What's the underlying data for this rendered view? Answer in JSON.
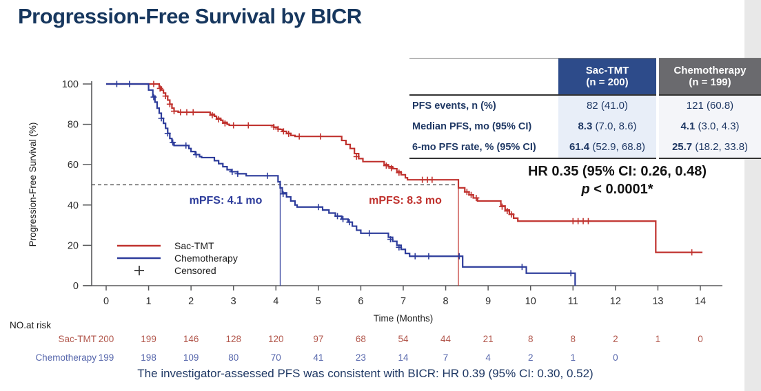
{
  "title": "Progression-Free Survival by BICR",
  "summary_table": {
    "columns": [
      {
        "name": "Sac-TMT",
        "sub": "(n = 200)"
      },
      {
        "name": "Chemotherapy",
        "sub": "(n = 199)"
      }
    ],
    "rows": [
      {
        "label": "PFS events, n (%)",
        "sac_strong": "",
        "sac_rest": "82 (41.0)",
        "chemo_strong": "",
        "chemo_rest": "121 (60.8)"
      },
      {
        "label": "Median PFS, mo (95% CI)",
        "sac_strong": "8.3",
        "sac_rest": "(7.0, 8.6)",
        "chemo_strong": "4.1",
        "chemo_rest": "(3.0, 4.3)"
      },
      {
        "label": "6-mo PFS rate, % (95% CI)",
        "sac_strong": "61.4",
        "sac_rest": "(52.9, 68.8)",
        "chemo_strong": "25.7",
        "chemo_rest": "(18.2, 33.8)"
      }
    ]
  },
  "hr_annotation": {
    "line1": "HR 0.35 (95% CI: 0.26, 0.48)",
    "p_label": "p",
    "p_rest": " < 0.0001*"
  },
  "footnote": "The investigator-assessed PFS was consistent with BICR: HR 0.39 (95% CI: 0.30, 0.52)",
  "chart_data": {
    "type": "line",
    "subtype": "kaplan-meier-step",
    "xlabel": "Time (Months)",
    "ylabel": "Progression-Free Survival (%)",
    "xlim": [
      0,
      14
    ],
    "ylim": [
      0,
      100
    ],
    "xticks": [
      0,
      1,
      2,
      3,
      4,
      5,
      6,
      7,
      8,
      9,
      10,
      11,
      12,
      13,
      14
    ],
    "yticks": [
      0,
      20,
      40,
      60,
      80,
      100
    ],
    "grid": false,
    "legend_position": "lower-left",
    "reference": {
      "dashed_y": 50,
      "sac_median_month": 8.3,
      "chemo_median_month": 4.1
    },
    "series": [
      {
        "name": "Sac-TMT",
        "color": "#C0322E",
        "median_label": "mPFS: 8.3 mo",
        "steps": [
          [
            0,
            100
          ],
          [
            1.2,
            100
          ],
          [
            1.25,
            98.5
          ],
          [
            1.3,
            97
          ],
          [
            1.35,
            95.5
          ],
          [
            1.4,
            94
          ],
          [
            1.45,
            92
          ],
          [
            1.5,
            90
          ],
          [
            1.55,
            88
          ],
          [
            1.6,
            86.5
          ],
          [
            1.7,
            86
          ],
          [
            2.45,
            85
          ],
          [
            2.55,
            84
          ],
          [
            2.6,
            83
          ],
          [
            2.7,
            82
          ],
          [
            2.75,
            81
          ],
          [
            2.85,
            80
          ],
          [
            2.9,
            79.5
          ],
          [
            3.95,
            78.5
          ],
          [
            4.05,
            77.5
          ],
          [
            4.15,
            76.5
          ],
          [
            4.25,
            75.5
          ],
          [
            4.35,
            74.5
          ],
          [
            4.45,
            74
          ],
          [
            5.55,
            72
          ],
          [
            5.65,
            70
          ],
          [
            5.75,
            68
          ],
          [
            5.85,
            65.5
          ],
          [
            5.95,
            63
          ],
          [
            6.05,
            61.5
          ],
          [
            6.55,
            60
          ],
          [
            6.65,
            59
          ],
          [
            6.75,
            58
          ],
          [
            6.85,
            56.5
          ],
          [
            6.95,
            55
          ],
          [
            7.05,
            53.5
          ],
          [
            7.1,
            52.5
          ],
          [
            8.3,
            48.5
          ],
          [
            8.45,
            46.5
          ],
          [
            8.55,
            45
          ],
          [
            8.65,
            43.5
          ],
          [
            8.75,
            42
          ],
          [
            9.3,
            39.5
          ],
          [
            9.4,
            37.5
          ],
          [
            9.5,
            35.5
          ],
          [
            9.6,
            33.5
          ],
          [
            9.7,
            32
          ],
          [
            12.95,
            16.5
          ],
          [
            14.05,
            16.5
          ]
        ],
        "censors": [
          [
            1.12,
            100
          ],
          [
            1.27,
            97.8
          ],
          [
            1.4,
            94
          ],
          [
            1.5,
            90
          ],
          [
            1.6,
            86.5
          ],
          [
            1.75,
            86
          ],
          [
            1.9,
            86
          ],
          [
            2.05,
            86
          ],
          [
            2.5,
            84.5
          ],
          [
            2.65,
            82.5
          ],
          [
            2.8,
            80.5
          ],
          [
            3.0,
            79.5
          ],
          [
            3.35,
            79.5
          ],
          [
            3.95,
            78.7
          ],
          [
            4.05,
            77.7
          ],
          [
            4.18,
            76.5
          ],
          [
            4.3,
            75.3
          ],
          [
            4.55,
            74
          ],
          [
            5.05,
            74
          ],
          [
            5.9,
            64
          ],
          [
            6.6,
            59.5
          ],
          [
            6.72,
            58.3
          ],
          [
            6.9,
            56
          ],
          [
            7.45,
            52.5
          ],
          [
            7.57,
            52.5
          ],
          [
            7.68,
            52.5
          ],
          [
            8.5,
            46.5
          ],
          [
            8.6,
            45
          ],
          [
            8.72,
            43.5
          ],
          [
            9.33,
            39.2
          ],
          [
            9.45,
            37
          ],
          [
            9.55,
            35.3
          ],
          [
            11.0,
            32
          ],
          [
            11.12,
            32
          ],
          [
            11.24,
            32
          ],
          [
            11.36,
            32
          ],
          [
            13.8,
            16.5
          ]
        ]
      },
      {
        "name": "Chemotherapy",
        "color": "#2D3C9B",
        "median_label": "mPFS: 4.1 mo",
        "steps": [
          [
            0,
            100
          ],
          [
            0.95,
            100
          ],
          [
            1.0,
            97
          ],
          [
            1.1,
            94
          ],
          [
            1.15,
            91
          ],
          [
            1.2,
            88
          ],
          [
            1.25,
            85.5
          ],
          [
            1.3,
            83
          ],
          [
            1.35,
            80.5
          ],
          [
            1.4,
            78
          ],
          [
            1.45,
            75.5
          ],
          [
            1.5,
            73
          ],
          [
            1.55,
            71
          ],
          [
            1.6,
            69.5
          ],
          [
            1.95,
            68
          ],
          [
            2.0,
            66.5
          ],
          [
            2.1,
            65
          ],
          [
            2.2,
            64
          ],
          [
            2.25,
            63.5
          ],
          [
            2.55,
            62
          ],
          [
            2.65,
            60.5
          ],
          [
            2.75,
            59
          ],
          [
            2.85,
            57.5
          ],
          [
            2.95,
            56.5
          ],
          [
            3.1,
            55.5
          ],
          [
            3.3,
            54.5
          ],
          [
            4.05,
            51.5
          ],
          [
            4.1,
            48.5
          ],
          [
            4.15,
            46
          ],
          [
            4.25,
            44
          ],
          [
            4.35,
            42
          ],
          [
            4.45,
            40
          ],
          [
            4.5,
            39
          ],
          [
            5.1,
            37.5
          ],
          [
            5.25,
            36
          ],
          [
            5.4,
            34.5
          ],
          [
            5.55,
            33
          ],
          [
            5.7,
            31.5
          ],
          [
            5.8,
            29.5
          ],
          [
            5.9,
            27.5
          ],
          [
            6.0,
            26
          ],
          [
            6.65,
            24
          ],
          [
            6.75,
            22
          ],
          [
            6.85,
            20
          ],
          [
            6.95,
            18
          ],
          [
            7.05,
            16
          ],
          [
            7.15,
            14.6
          ],
          [
            8.4,
            9.3
          ],
          [
            9.9,
            6.2
          ],
          [
            11.05,
            0
          ]
        ],
        "censors": [
          [
            0.25,
            100
          ],
          [
            0.55,
            100
          ],
          [
            1.12,
            93.5
          ],
          [
            1.3,
            83
          ],
          [
            1.45,
            75.5
          ],
          [
            1.57,
            71
          ],
          [
            1.88,
            69.5
          ],
          [
            2.12,
            65
          ],
          [
            2.97,
            56.5
          ],
          [
            3.1,
            55.5
          ],
          [
            3.8,
            54.5
          ],
          [
            4.17,
            45.5
          ],
          [
            5.0,
            39
          ],
          [
            5.45,
            34.5
          ],
          [
            5.58,
            33
          ],
          [
            5.73,
            31.5
          ],
          [
            6.2,
            26
          ],
          [
            6.7,
            23
          ],
          [
            6.9,
            19
          ],
          [
            7.28,
            14.6
          ],
          [
            7.6,
            14.6
          ],
          [
            8.32,
            14.6
          ],
          [
            9.8,
            9.3
          ],
          [
            10.95,
            6.2
          ]
        ]
      }
    ],
    "legend": [
      {
        "label": "Sac-TMT",
        "symbol": "line",
        "color": "#C0322E"
      },
      {
        "label": "Chemotherapy",
        "symbol": "line",
        "color": "#2D3C9B"
      },
      {
        "label": "Censored",
        "symbol": "plus",
        "color": "#3A3A3A"
      }
    ],
    "at_risk": {
      "heading": "NO.at risk",
      "rows": [
        {
          "label": "Sac-TMT",
          "color": "#B2574C",
          "values": [
            200,
            199,
            146,
            128,
            120,
            97,
            68,
            54,
            44,
            21,
            8,
            8,
            2,
            1,
            0
          ]
        },
        {
          "label": "Chemotherapy",
          "color": "#5767AC",
          "values": [
            199,
            198,
            109,
            80,
            70,
            41,
            23,
            14,
            7,
            4,
            2,
            1,
            0
          ]
        }
      ]
    }
  }
}
